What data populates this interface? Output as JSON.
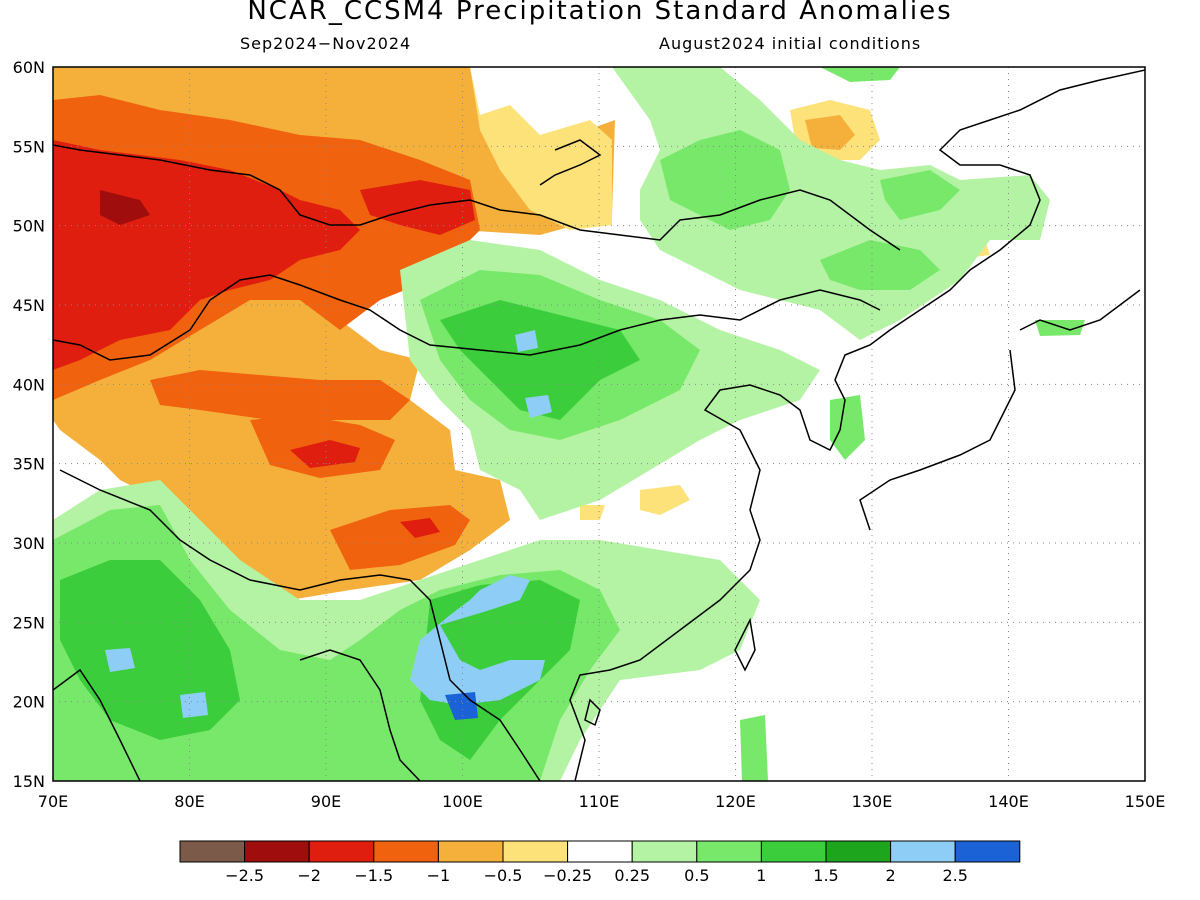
{
  "title": "NCAR_CCSM4 Precipitation Standard Anomalies",
  "subtitle_left": "Sep2024−Nov2024",
  "subtitle_right": "August2024 initial conditions",
  "map": {
    "lon_range": [
      70,
      150
    ],
    "lat_range": [
      15,
      60
    ],
    "lon_labels": [
      "70E",
      "80E",
      "90E",
      "100E",
      "110E",
      "120E",
      "130E",
      "140E",
      "150E"
    ],
    "lat_labels": [
      "60N",
      "55N",
      "50N",
      "45N",
      "40N",
      "35N",
      "30N",
      "25N",
      "20N",
      "15N"
    ],
    "grid": "dotted"
  },
  "colorbar": {
    "colors": [
      "#7b5a4a",
      "#a00d0d",
      "#e01e0f",
      "#f0620d",
      "#f5b03c",
      "#fde27a",
      "#ffffff",
      "#b4f3a4",
      "#78e86a",
      "#3ccd3c",
      "#1ea51e",
      "#8ecef6",
      "#1a62d6"
    ],
    "labels": [
      "−2.5",
      "−2",
      "−1.5",
      "−1",
      "−0.5",
      "−0.25",
      "0.25",
      "0.5",
      "1",
      "1.5",
      "2",
      "2.5"
    ]
  }
}
